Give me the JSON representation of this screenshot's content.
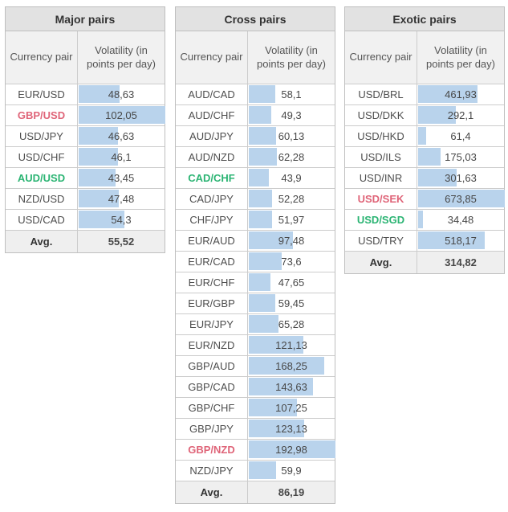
{
  "colors": {
    "bar": "#b9d3ec",
    "highlight_red": "#df6478",
    "highlight_green": "#2bb473",
    "title_background": "#e2e2e2",
    "header_background": "#f1f1f1",
    "avg_background": "#efefef",
    "border": "#bfbfbf"
  },
  "chart_data": [
    {
      "type": "table",
      "title": "Major pairs",
      "columns": [
        "Currency pair",
        "Volatility (in points per day)"
      ],
      "bar_max": 102.05,
      "avg_label": "Avg.",
      "avg_value": "55,52",
      "rows": [
        {
          "pair": "EUR/USD",
          "value": "48,63",
          "num": 48.63,
          "color": "default"
        },
        {
          "pair": "GBP/USD",
          "value": "102,05",
          "num": 102.05,
          "color": "red"
        },
        {
          "pair": "USD/JPY",
          "value": "46,63",
          "num": 46.63,
          "color": "default"
        },
        {
          "pair": "USD/CHF",
          "value": "46,1",
          "num": 46.1,
          "color": "default"
        },
        {
          "pair": "AUD/USD",
          "value": "43,45",
          "num": 43.45,
          "color": "green"
        },
        {
          "pair": "NZD/USD",
          "value": "47,48",
          "num": 47.48,
          "color": "default"
        },
        {
          "pair": "USD/CAD",
          "value": "54,3",
          "num": 54.3,
          "color": "default"
        }
      ]
    },
    {
      "type": "table",
      "title": "Cross pairs",
      "columns": [
        "Currency pair",
        "Volatility (in points per day)"
      ],
      "bar_max": 192.98,
      "avg_label": "Avg.",
      "avg_value": "86,19",
      "rows": [
        {
          "pair": "AUD/CAD",
          "value": "58,1",
          "num": 58.1,
          "color": "default"
        },
        {
          "pair": "AUD/CHF",
          "value": "49,3",
          "num": 49.3,
          "color": "default"
        },
        {
          "pair": "AUD/JPY",
          "value": "60,13",
          "num": 60.13,
          "color": "default"
        },
        {
          "pair": "AUD/NZD",
          "value": "62,28",
          "num": 62.28,
          "color": "default"
        },
        {
          "pair": "CAD/CHF",
          "value": "43,9",
          "num": 43.9,
          "color": "green"
        },
        {
          "pair": "CAD/JPY",
          "value": "52,28",
          "num": 52.28,
          "color": "default"
        },
        {
          "pair": "CHF/JPY",
          "value": "51,97",
          "num": 51.97,
          "color": "default"
        },
        {
          "pair": "EUR/AUD",
          "value": "97,48",
          "num": 97.48,
          "color": "default"
        },
        {
          "pair": "EUR/CAD",
          "value": "73,6",
          "num": 73.6,
          "color": "default"
        },
        {
          "pair": "EUR/CHF",
          "value": "47,65",
          "num": 47.65,
          "color": "default"
        },
        {
          "pair": "EUR/GBP",
          "value": "59,45",
          "num": 59.45,
          "color": "default"
        },
        {
          "pair": "EUR/JPY",
          "value": "65,28",
          "num": 65.28,
          "color": "default"
        },
        {
          "pair": "EUR/NZD",
          "value": "121,13",
          "num": 121.13,
          "color": "default"
        },
        {
          "pair": "GBP/AUD",
          "value": "168,25",
          "num": 168.25,
          "color": "default"
        },
        {
          "pair": "GBP/CAD",
          "value": "143,63",
          "num": 143.63,
          "color": "default"
        },
        {
          "pair": "GBP/CHF",
          "value": "107,25",
          "num": 107.25,
          "color": "default"
        },
        {
          "pair": "GBP/JPY",
          "value": "123,13",
          "num": 123.13,
          "color": "default"
        },
        {
          "pair": "GBP/NZD",
          "value": "192,98",
          "num": 192.98,
          "color": "red"
        },
        {
          "pair": "NZD/JPY",
          "value": "59,9",
          "num": 59.9,
          "color": "default"
        }
      ]
    },
    {
      "type": "table",
      "title": "Exotic pairs",
      "columns": [
        "Currency pair",
        "Volatility (in points per day)"
      ],
      "bar_max": 673.85,
      "avg_label": "Avg.",
      "avg_value": "314,82",
      "rows": [
        {
          "pair": "USD/BRL",
          "value": "461,93",
          "num": 461.93,
          "color": "default"
        },
        {
          "pair": "USD/DKK",
          "value": "292,1",
          "num": 292.1,
          "color": "default"
        },
        {
          "pair": "USD/HKD",
          "value": "61,4",
          "num": 61.4,
          "color": "default"
        },
        {
          "pair": "USD/ILS",
          "value": "175,03",
          "num": 175.03,
          "color": "default"
        },
        {
          "pair": "USD/INR",
          "value": "301,63",
          "num": 301.63,
          "color": "default"
        },
        {
          "pair": "USD/SEK",
          "value": "673,85",
          "num": 673.85,
          "color": "red"
        },
        {
          "pair": "USD/SGD",
          "value": "34,48",
          "num": 34.48,
          "color": "green"
        },
        {
          "pair": "USD/TRY",
          "value": "518,17",
          "num": 518.17,
          "color": "default"
        }
      ]
    }
  ]
}
